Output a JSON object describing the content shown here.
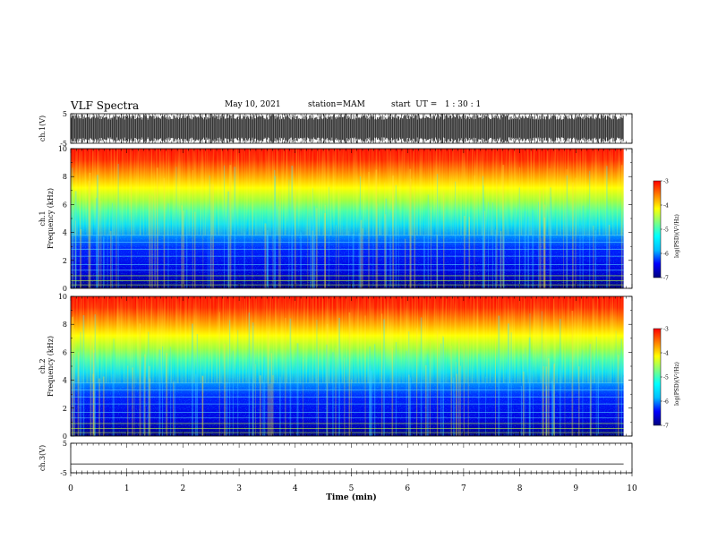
{
  "header": {
    "title": "VLF Spectra",
    "date": "May 10, 2021",
    "station": "station=MAM",
    "start": "start  UT =   1 : 30 : 1"
  },
  "colors": {
    "colormap": [
      "#00007f",
      "#0000ff",
      "#00bfff",
      "#00ffff",
      "#7fff7f",
      "#ffff00",
      "#ff7f00",
      "#ff0000"
    ],
    "axis": "#000000"
  },
  "chart_data": [
    {
      "type": "line",
      "ylabel": "ch.1(V)",
      "ylim": [
        -5,
        5
      ],
      "yticks": [
        "5",
        "-5"
      ],
      "xlim": [
        0,
        10
      ],
      "description_note": "dense noisy waveform"
    },
    {
      "type": "heatmap",
      "ylabel_line1": "ch.1",
      "ylabel_line2": "Frequency (kHz)",
      "ylim": [
        0,
        10
      ],
      "yticks": [
        "0",
        "2",
        "4",
        "6",
        "8",
        "10"
      ],
      "xlim": [
        0,
        10
      ],
      "colorbar": {
        "label": "log(PSD)(V²/Hz)",
        "ticks": [
          "-3",
          "-4",
          "-5",
          "-6",
          "-7"
        ],
        "range": [
          -7,
          -3
        ]
      },
      "data_end_min": 9.85
    },
    {
      "type": "heatmap",
      "ylabel_line1": "ch.2",
      "ylabel_line2": "Frequency (kHz)",
      "ylim": [
        0,
        10
      ],
      "yticks": [
        "0",
        "2",
        "4",
        "6",
        "8",
        "10"
      ],
      "xlim": [
        0,
        10
      ],
      "colorbar": {
        "label": "log(PSD)(V²/Hz)",
        "ticks": [
          "-3",
          "-4",
          "-5",
          "-6",
          "-7"
        ],
        "range": [
          -7,
          -3
        ]
      },
      "data_end_min": 9.85
    },
    {
      "type": "line",
      "ylabel": "ch.3(V)",
      "ylim": [
        -5,
        5
      ],
      "yticks": [
        "5",
        "-5"
      ],
      "xlim": [
        0,
        10
      ],
      "values_note": "flat line near -2"
    }
  ],
  "xaxis": {
    "label": "Time (min)",
    "ticks": [
      "0",
      "1",
      "2",
      "3",
      "4",
      "5",
      "6",
      "7",
      "8",
      "9",
      "10"
    ]
  }
}
